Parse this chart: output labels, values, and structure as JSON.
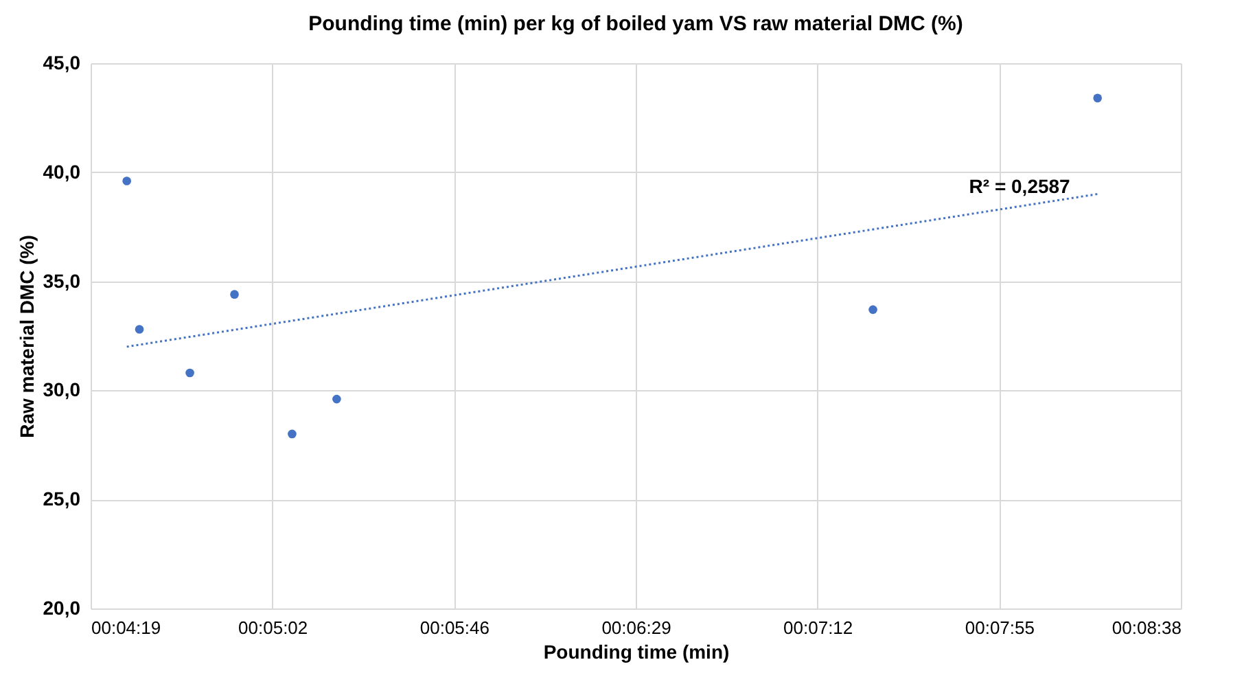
{
  "chart_data": {
    "type": "scatter",
    "title": "Pounding time (min) per kg of boiled yam VS raw material DMC (%)",
    "xlabel": "Pounding time (min)",
    "ylabel": "Raw material DMC (%)",
    "x": [
      267.8,
      270.8,
      282.8,
      293.4,
      307.1,
      317.7,
      445.2,
      498.6
    ],
    "series": [
      {
        "color": "#4472c4",
        "values": [
          39.6,
          32.8,
          30.8,
          34.4,
          28.0,
          29.6,
          33.7,
          43.4
        ]
      },
      {
        "type": "line",
        "line_style": "dotted",
        "marker": "none",
        "color": "#4472c4",
        "x": [
          267.8,
          498.6
        ],
        "values": [
          32.0,
          39.0
        ]
      }
    ],
    "xlim": [
      259.2,
      518.4
    ],
    "xticks": [
      {
        "value": 259.2,
        "label": "00:04:19"
      },
      {
        "value": 302.4,
        "label": "00:05:02"
      },
      {
        "value": 345.6,
        "label": "00:05:46"
      },
      {
        "value": 388.8,
        "label": "00:06:29"
      },
      {
        "value": 432,
        "label": "00:07:12"
      },
      {
        "value": 475.2,
        "label": "00:07:55"
      },
      {
        "value": 518.4,
        "label": "00:08:38"
      }
    ],
    "ylim": [
      20,
      45
    ],
    "yticks": [
      {
        "value": 20,
        "label": "20,0"
      },
      {
        "value": 25,
        "label": "25,0"
      },
      {
        "value": 30,
        "label": "30,0"
      },
      {
        "value": 35,
        "label": "35,0"
      },
      {
        "value": 40,
        "label": "40,0"
      },
      {
        "value": 45,
        "label": "45,0"
      }
    ],
    "annotations": [
      "R² = 0,2587"
    ],
    "grid": true,
    "marker": "circle"
  }
}
